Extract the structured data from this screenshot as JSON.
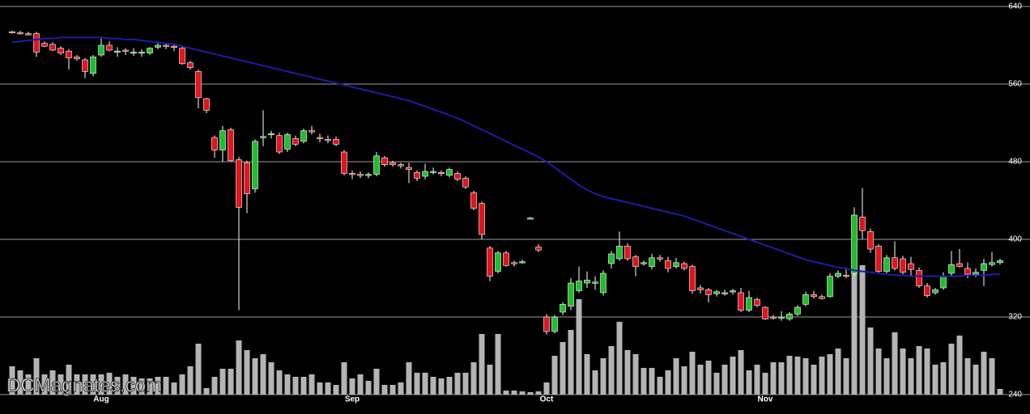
{
  "chart_data": {
    "type": "candlestick",
    "watermark": "DCMagnates.com",
    "ylim": [
      240,
      640
    ],
    "yticks": [
      240,
      320,
      400,
      480,
      560,
      640
    ],
    "grid": true,
    "up_color": "#1fbf2a",
    "down_color": "#e3141b",
    "wick_color": "#ffffff",
    "ma_color": "#1c1ca8",
    "volume_color": "#b4b4b4",
    "categories": [
      null,
      null,
      null,
      null,
      null,
      null,
      null,
      null,
      null,
      null,
      null,
      "Aug",
      null,
      null,
      null,
      null,
      null,
      null,
      null,
      null,
      null,
      null,
      null,
      null,
      null,
      null,
      null,
      null,
      null,
      null,
      null,
      null,
      null,
      null,
      null,
      null,
      null,
      null,
      null,
      null,
      null,
      null,
      "Sep",
      null,
      null,
      null,
      null,
      null,
      null,
      null,
      null,
      null,
      null,
      null,
      null,
      null,
      null,
      null,
      null,
      null,
      null,
      null,
      null,
      null,
      null,
      null,
      "Oct",
      null,
      null,
      null,
      null,
      null,
      null,
      null,
      null,
      null,
      null,
      null,
      null,
      null,
      null,
      null,
      null,
      null,
      null,
      null,
      null,
      null,
      null,
      null,
      null,
      null,
      null,
      "Nov",
      null,
      null,
      null,
      null,
      null,
      null,
      null,
      null,
      null,
      null,
      null,
      null,
      null,
      null,
      null,
      null,
      null,
      null,
      null,
      null,
      null,
      null,
      null,
      null,
      null,
      null,
      null,
      null,
      null
    ],
    "ohlc": [
      [
        614,
        615,
        612,
        613
      ],
      [
        613,
        615,
        611,
        612
      ],
      [
        612,
        614,
        610,
        611
      ],
      [
        612,
        614,
        588,
        593
      ],
      [
        602,
        604,
        598,
        599
      ],
      [
        601,
        603,
        594,
        595
      ],
      [
        597,
        599,
        590,
        592
      ],
      [
        594,
        596,
        575,
        587
      ],
      [
        588,
        590,
        584,
        586
      ],
      [
        585,
        587,
        566,
        573
      ],
      [
        571,
        590,
        568,
        588
      ],
      [
        590,
        607,
        588,
        600
      ],
      [
        600,
        604,
        594,
        595
      ],
      [
        594,
        598,
        588,
        594
      ],
      [
        595,
        597,
        590,
        594
      ],
      [
        593,
        597,
        589,
        593
      ],
      [
        592,
        596,
        588,
        593
      ],
      [
        592,
        598,
        590,
        597
      ],
      [
        598,
        604,
        596,
        600
      ],
      [
        600,
        602,
        596,
        599
      ],
      [
        599,
        601,
        594,
        598
      ],
      [
        597,
        599,
        580,
        581
      ],
      [
        582,
        584,
        575,
        577
      ],
      [
        573,
        575,
        535,
        546
      ],
      [
        545,
        546,
        530,
        533
      ],
      [
        505,
        507,
        484,
        492
      ],
      [
        492,
        517,
        480,
        512
      ],
      [
        513,
        515,
        480,
        481
      ],
      [
        482,
        485,
        327,
        433
      ],
      [
        479,
        481,
        427,
        447
      ],
      [
        452,
        503,
        448,
        501
      ],
      [
        505,
        533,
        496,
        506
      ],
      [
        508,
        512,
        504,
        509
      ],
      [
        507,
        510,
        488,
        490
      ],
      [
        493,
        510,
        490,
        508
      ],
      [
        504,
        507,
        496,
        498
      ],
      [
        501,
        514,
        499,
        512
      ],
      [
        512,
        517,
        508,
        511
      ],
      [
        505,
        509,
        500,
        504
      ],
      [
        503,
        507,
        499,
        502
      ],
      [
        503,
        506,
        496,
        498
      ],
      [
        490,
        492,
        466,
        468
      ],
      [
        468,
        471,
        462,
        467
      ],
      [
        467,
        470,
        463,
        466
      ],
      [
        466,
        469,
        463,
        467
      ],
      [
        467,
        490,
        465,
        486
      ],
      [
        484,
        486,
        475,
        477
      ],
      [
        479,
        481,
        475,
        477
      ],
      [
        477,
        479,
        473,
        476
      ],
      [
        474,
        479,
        458,
        472
      ],
      [
        469,
        471,
        460,
        463
      ],
      [
        465,
        478,
        462,
        470
      ],
      [
        470,
        474,
        467,
        470
      ],
      [
        469,
        471,
        465,
        468
      ],
      [
        466,
        474,
        464,
        472
      ],
      [
        468,
        470,
        460,
        462
      ],
      [
        463,
        465,
        452,
        454
      ],
      [
        448,
        450,
        430,
        432
      ],
      [
        437,
        439,
        400,
        405
      ],
      [
        391,
        393,
        357,
        362
      ],
      [
        367,
        388,
        365,
        386
      ],
      [
        386,
        388,
        372,
        373
      ],
      [
        376,
        378,
        372,
        375
      ],
      [
        377,
        379,
        375,
        377
      ],
      [
        422,
        423,
        421,
        422
      ],
      [
        392,
        395,
        387,
        389
      ],
      [
        320,
        323,
        302,
        305
      ],
      [
        305,
        322,
        303,
        320
      ],
      [
        325,
        335,
        322,
        333
      ],
      [
        331,
        360,
        327,
        355
      ],
      [
        347,
        372,
        345,
        357
      ],
      [
        355,
        367,
        350,
        358
      ],
      [
        355,
        362,
        348,
        356
      ],
      [
        345,
        368,
        342,
        365
      ],
      [
        375,
        388,
        370,
        385
      ],
      [
        380,
        408,
        378,
        393
      ],
      [
        393,
        396,
        378,
        380
      ],
      [
        382,
        384,
        362,
        372
      ],
      [
        375,
        378,
        373,
        376
      ],
      [
        372,
        385,
        369,
        381
      ],
      [
        381,
        384,
        377,
        380
      ],
      [
        378,
        382,
        366,
        370
      ],
      [
        372,
        381,
        370,
        376
      ],
      [
        375,
        377,
        368,
        370
      ],
      [
        372,
        374,
        344,
        347
      ],
      [
        350,
        353,
        344,
        348
      ],
      [
        348,
        350,
        335,
        343
      ],
      [
        344,
        348,
        341,
        346
      ],
      [
        344,
        348,
        342,
        345
      ],
      [
        346,
        349,
        343,
        347
      ],
      [
        345,
        350,
        325,
        327
      ],
      [
        327,
        347,
        325,
        340
      ],
      [
        338,
        340,
        330,
        332
      ],
      [
        330,
        331,
        317,
        318
      ],
      [
        320,
        322,
        317,
        319
      ],
      [
        319,
        326,
        316,
        320
      ],
      [
        318,
        325,
        316,
        323
      ],
      [
        323,
        332,
        321,
        330
      ],
      [
        333,
        346,
        331,
        343
      ],
      [
        343,
        347,
        339,
        341
      ],
      [
        341,
        343,
        338,
        339
      ],
      [
        341,
        365,
        340,
        362
      ],
      [
        362,
        368,
        360,
        365
      ],
      [
        363,
        369,
        360,
        362
      ],
      [
        365,
        433,
        363,
        425
      ],
      [
        423,
        453,
        400,
        409
      ],
      [
        408,
        411,
        386,
        390
      ],
      [
        393,
        395,
        365,
        367
      ],
      [
        367,
        384,
        365,
        381
      ],
      [
        381,
        398,
        368,
        370
      ],
      [
        380,
        383,
        364,
        366
      ],
      [
        375,
        382,
        362,
        369
      ],
      [
        368,
        371,
        350,
        352
      ],
      [
        352,
        355,
        340,
        342
      ],
      [
        345,
        350,
        343,
        348
      ],
      [
        350,
        366,
        348,
        362
      ],
      [
        365,
        388,
        362,
        374
      ],
      [
        375,
        390,
        371,
        372
      ],
      [
        370,
        376,
        360,
        364
      ],
      [
        364,
        370,
        361,
        366
      ],
      [
        368,
        380,
        352,
        375
      ],
      [
        374,
        387,
        372,
        376
      ],
      [
        376,
        380,
        374,
        378
      ]
    ],
    "volume": [
      35,
      30,
      25,
      45,
      25,
      30,
      25,
      37,
      25,
      25,
      25,
      25,
      27,
      22,
      25,
      22,
      20,
      20,
      22,
      22,
      15,
      25,
      35,
      63,
      8,
      22,
      32,
      32,
      67,
      55,
      45,
      50,
      40,
      30,
      25,
      22,
      22,
      25,
      15,
      15,
      12,
      40,
      20,
      25,
      17,
      32,
      12,
      12,
      15,
      40,
      27,
      27,
      22,
      20,
      22,
      27,
      27,
      40,
      75,
      37,
      75,
      5,
      5,
      4,
      3,
      4,
      15,
      48,
      65,
      80,
      118,
      50,
      30,
      45,
      60,
      90,
      55,
      50,
      33,
      33,
      22,
      30,
      45,
      35,
      53,
      37,
      42,
      27,
      37,
      47,
      55,
      30,
      37,
      27,
      40,
      40,
      48,
      47,
      45,
      37,
      47,
      50,
      57,
      45,
      160,
      160,
      83,
      57,
      45,
      77,
      57,
      45,
      60,
      57,
      37,
      40,
      63,
      73,
      45,
      37,
      53,
      45,
      7
    ],
    "moving_average": [
      603,
      604,
      605,
      606,
      607,
      607,
      608,
      608,
      608,
      608,
      608,
      608,
      607,
      607,
      606,
      606,
      605,
      604,
      603,
      602,
      601,
      599,
      597,
      595,
      593,
      591,
      589,
      587,
      585,
      583,
      581,
      579,
      577,
      575,
      573,
      571,
      569,
      567,
      565,
      563,
      561,
      559,
      557,
      555,
      553,
      551,
      549,
      547,
      545,
      543,
      540,
      537,
      534,
      531,
      528,
      525,
      521,
      517,
      513,
      509,
      505,
      501,
      497,
      493,
      489,
      485,
      480,
      474,
      468,
      462,
      456,
      451,
      447,
      444,
      442,
      440,
      438,
      436,
      434,
      432,
      430,
      428,
      426,
      424,
      421,
      418,
      415,
      412,
      409,
      406,
      403,
      400,
      397,
      394,
      391,
      388,
      385,
      382,
      379,
      377,
      375,
      373,
      371,
      370,
      368,
      367,
      366,
      365,
      364,
      363,
      363,
      362,
      362,
      362,
      362,
      362,
      362,
      362,
      363,
      363,
      363,
      364,
      364
    ]
  }
}
